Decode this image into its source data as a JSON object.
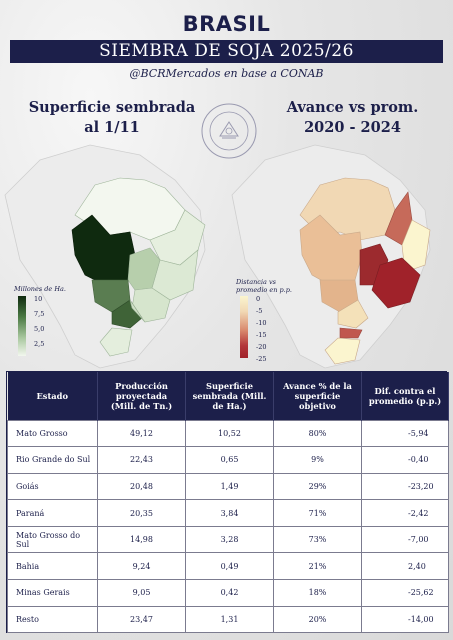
{
  "header": {
    "country": "BRASIL",
    "banner": "SIEMBRA DE SOJA 2025/26",
    "source": "@BCRMercados en base a CONAB"
  },
  "map_left": {
    "title_line1": "Superficie sembrada",
    "title_line2": "al 1/11",
    "legend_title": "Millones de Ha.",
    "legend_ticks": [
      "10",
      "7,5",
      "5,0",
      "2,5"
    ],
    "colors": {
      "low": "#f2f7ee",
      "high": "#0f2a0f"
    }
  },
  "map_right": {
    "title_line1": "Avance vs prom.",
    "title_line2": "2020 - 2024",
    "legend_title_line1": "Distancia vs",
    "legend_title_line2": "promedio en p.p.",
    "legend_ticks": [
      "0",
      "-5",
      "-10",
      "-15",
      "-20",
      "-25"
    ],
    "colors": {
      "high": "#fbf5cf",
      "low": "#a0222a"
    }
  },
  "seal_icon": "bolsa-de-comercio-rosario-seal-icon",
  "table": {
    "headers": [
      "Estado",
      "Producción proyectada (Mill. de Tn.)",
      "Superficie sembrada (Mill. de Ha.)",
      "Avance % de la superficie objetivo",
      "Dif. contra el promedio (p.p.)"
    ],
    "rows": [
      [
        "Mato Grosso",
        "49,12",
        "10,52",
        "80%",
        "-5,94"
      ],
      [
        "Rio Grande do Sul",
        "22,43",
        "0,65",
        "9%",
        "-0,40"
      ],
      [
        "Goiás",
        "20,48",
        "1,49",
        "29%",
        "-23,20"
      ],
      [
        "Paraná",
        "20,35",
        "3,84",
        "71%",
        "-2,42"
      ],
      [
        "Mato Grosso do Sul",
        "14,98",
        "3,28",
        "73%",
        "-7,00"
      ],
      [
        "Bahia",
        "9,24",
        "0,49",
        "21%",
        "2,40"
      ],
      [
        "Minas Gerais",
        "9,05",
        "0,42",
        "18%",
        "-25,62"
      ],
      [
        "Resto",
        "23,47",
        "1,31",
        "20%",
        "-14,00"
      ]
    ]
  }
}
